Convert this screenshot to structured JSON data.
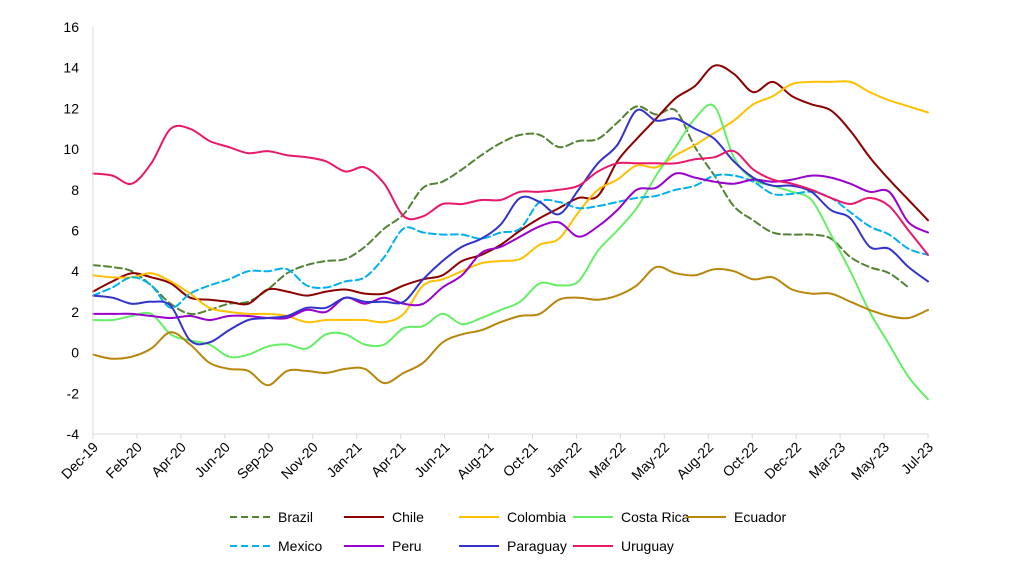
{
  "chart_data": {
    "type": "line",
    "title": "",
    "xlabel": "",
    "ylabel": "",
    "ylim": [
      -4,
      16
    ],
    "y_ticks": [
      "16",
      "14",
      "12",
      "10",
      "8",
      "6",
      "4",
      "2",
      "0",
      "-2",
      "-4"
    ],
    "y_tick_values": [
      16,
      14,
      12,
      10,
      8,
      6,
      4,
      2,
      0,
      -2,
      -4
    ],
    "x_tick_labels": [
      "Dec-19",
      "Feb-20",
      "Apr-20",
      "Jun-20",
      "Sep-20",
      "Nov-20",
      "Jan-21",
      "Apr-21",
      "Jun-21",
      "Aug-21",
      "Oct-21",
      "Jan-22",
      "Mar-22",
      "May-22",
      "Aug-22",
      "Oct-22",
      "Dec-22",
      "Mar-23",
      "May-23",
      "Jul-23"
    ],
    "grid": false,
    "legend_position": "bottom",
    "x": [
      "Dec-19",
      "Jan-20",
      "Feb-20",
      "Mar-20",
      "Apr-20",
      "May-20",
      "Jun-20",
      "Jul-20",
      "Aug-20",
      "Sep-20",
      "Oct-20",
      "Nov-20",
      "Dec-20",
      "Jan-21",
      "Feb-21",
      "Mar-21",
      "Apr-21",
      "May-21",
      "Jun-21",
      "Jul-21",
      "Aug-21",
      "Sep-21",
      "Oct-21",
      "Nov-21",
      "Dec-21",
      "Jan-22",
      "Feb-22",
      "Mar-22",
      "Apr-22",
      "May-22",
      "Jun-22",
      "Jul-22",
      "Aug-22",
      "Sep-22",
      "Oct-22",
      "Nov-22",
      "Dec-22",
      "Jan-23",
      "Feb-23",
      "Mar-23",
      "Apr-23",
      "May-23",
      "Jun-23",
      "Jul-23"
    ],
    "series": [
      {
        "name": "Brazil",
        "color": "#548235",
        "dash": "dashed",
        "values": [
          4.3,
          4.2,
          4.0,
          3.3,
          2.4,
          1.9,
          2.1,
          2.4,
          2.5,
          3.1,
          3.9,
          4.3,
          4.5,
          4.6,
          5.2,
          6.1,
          6.8,
          8.1,
          8.4,
          9.0,
          9.7,
          10.3,
          10.7,
          10.7,
          10.1,
          10.4,
          10.5,
          11.3,
          12.1,
          11.7,
          11.9,
          10.1,
          8.7,
          7.2,
          6.5,
          5.9,
          5.8,
          5.8,
          5.6,
          4.7,
          4.2,
          3.9,
          3.2,
          null
        ]
      },
      {
        "name": "Chile",
        "color": "#8b0000",
        "dash": "solid",
        "values": [
          3.0,
          3.5,
          3.9,
          3.7,
          3.4,
          2.7,
          2.6,
          2.5,
          2.4,
          3.1,
          3.0,
          2.8,
          3.0,
          3.1,
          2.9,
          2.9,
          3.3,
          3.6,
          3.8,
          4.5,
          4.8,
          5.3,
          6.0,
          6.6,
          7.1,
          7.6,
          7.7,
          9.4,
          10.5,
          11.5,
          12.5,
          13.1,
          14.1,
          13.7,
          12.8,
          13.3,
          12.6,
          12.2,
          11.9,
          10.9,
          9.6,
          8.5,
          7.5,
          6.5
        ]
      },
      {
        "name": "Colombia",
        "color": "#ffc000",
        "dash": "solid",
        "values": [
          3.8,
          3.7,
          3.7,
          3.9,
          3.5,
          2.9,
          2.2,
          2.0,
          1.9,
          1.9,
          1.8,
          1.5,
          1.6,
          1.6,
          1.6,
          1.5,
          1.9,
          3.3,
          3.6,
          4.0,
          4.4,
          4.5,
          4.6,
          5.3,
          5.6,
          6.9,
          8.0,
          8.5,
          9.2,
          9.1,
          9.7,
          10.2,
          10.8,
          11.4,
          12.2,
          12.6,
          13.2,
          13.3,
          13.3,
          13.3,
          12.8,
          12.4,
          12.1,
          11.8
        ]
      },
      {
        "name": "Costa Rica",
        "color": "#66ee66",
        "dash": "solid",
        "values": [
          1.6,
          1.6,
          1.8,
          1.9,
          0.9,
          0.6,
          0.4,
          -0.2,
          -0.1,
          0.3,
          0.4,
          0.2,
          0.9,
          0.9,
          0.4,
          0.4,
          1.2,
          1.3,
          1.9,
          1.4,
          1.7,
          2.1,
          2.5,
          3.4,
          3.3,
          3.5,
          5.0,
          6.0,
          7.1,
          8.7,
          10.1,
          11.5,
          12.1,
          9.6,
          8.5,
          8.2,
          7.9,
          7.5,
          5.8,
          4.0,
          2.0,
          0.4,
          -1.2,
          -2.3
        ]
      },
      {
        "name": "Ecuador",
        "color": "#b8860b",
        "dash": "solid",
        "values": [
          -0.1,
          -0.3,
          -0.2,
          0.2,
          1.0,
          0.4,
          -0.5,
          -0.8,
          -0.9,
          -1.6,
          -0.9,
          -0.9,
          -1.0,
          -0.8,
          -0.8,
          -1.5,
          -1.0,
          -0.5,
          0.5,
          0.9,
          1.1,
          1.5,
          1.8,
          1.9,
          2.6,
          2.7,
          2.6,
          2.8,
          3.3,
          4.2,
          3.9,
          3.8,
          4.1,
          4.0,
          3.6,
          3.7,
          3.1,
          2.9,
          2.9,
          2.5,
          2.1,
          1.8,
          1.7,
          2.1
        ]
      },
      {
        "name": "Mexico",
        "color": "#00b0f0",
        "dash": "dashed",
        "values": [
          2.8,
          3.2,
          3.7,
          3.3,
          2.2,
          2.9,
          3.3,
          3.6,
          4.0,
          4.0,
          4.1,
          3.3,
          3.2,
          3.5,
          3.7,
          4.7,
          6.1,
          5.9,
          5.8,
          5.8,
          5.6,
          5.9,
          6.1,
          7.4,
          7.4,
          7.1,
          7.2,
          7.4,
          7.6,
          7.7,
          8.0,
          8.2,
          8.7,
          8.7,
          8.4,
          7.8,
          7.8,
          7.9,
          7.6,
          6.9,
          6.2,
          5.8,
          5.1,
          4.8
        ]
      },
      {
        "name": "Peru",
        "color": "#9900cc",
        "dash": "solid",
        "values": [
          1.9,
          1.9,
          1.9,
          1.8,
          1.7,
          1.8,
          1.6,
          1.8,
          1.8,
          1.7,
          1.7,
          2.1,
          2.0,
          2.7,
          2.4,
          2.7,
          2.4,
          2.4,
          3.2,
          3.8,
          4.9,
          5.2,
          5.7,
          6.2,
          6.4,
          5.7,
          6.2,
          7.0,
          8.0,
          8.1,
          8.8,
          8.6,
          8.4,
          8.3,
          8.5,
          8.4,
          8.5,
          8.7,
          8.6,
          8.3,
          7.9,
          7.9,
          6.4,
          5.9
        ]
      },
      {
        "name": "Paraguay",
        "color": "#3333cc",
        "dash": "solid",
        "values": [
          2.8,
          2.7,
          2.4,
          2.5,
          2.3,
          0.6,
          0.5,
          1.1,
          1.6,
          1.7,
          1.8,
          2.2,
          2.2,
          2.7,
          2.5,
          2.5,
          2.5,
          3.6,
          4.5,
          5.2,
          5.6,
          6.3,
          7.6,
          7.4,
          6.8,
          8.0,
          9.3,
          10.2,
          11.9,
          11.4,
          11.5,
          11.0,
          10.5,
          9.4,
          8.6,
          8.2,
          8.2,
          7.9,
          7.0,
          6.6,
          5.2,
          5.1,
          4.2,
          3.5
        ]
      },
      {
        "name": "Uruguay",
        "color": "#e8186b",
        "dash": "solid",
        "values": [
          8.8,
          8.7,
          8.3,
          9.3,
          11.0,
          11.0,
          10.4,
          10.1,
          9.8,
          9.9,
          9.7,
          9.6,
          9.4,
          8.9,
          9.1,
          8.3,
          6.7,
          6.7,
          7.3,
          7.3,
          7.5,
          7.5,
          7.9,
          7.9,
          8.0,
          8.2,
          8.9,
          9.3,
          9.3,
          9.3,
          9.3,
          9.5,
          9.6,
          9.9,
          9.0,
          8.5,
          8.3,
          8.0,
          7.6,
          7.3,
          7.6,
          7.2,
          6.0,
          4.8
        ]
      }
    ]
  }
}
